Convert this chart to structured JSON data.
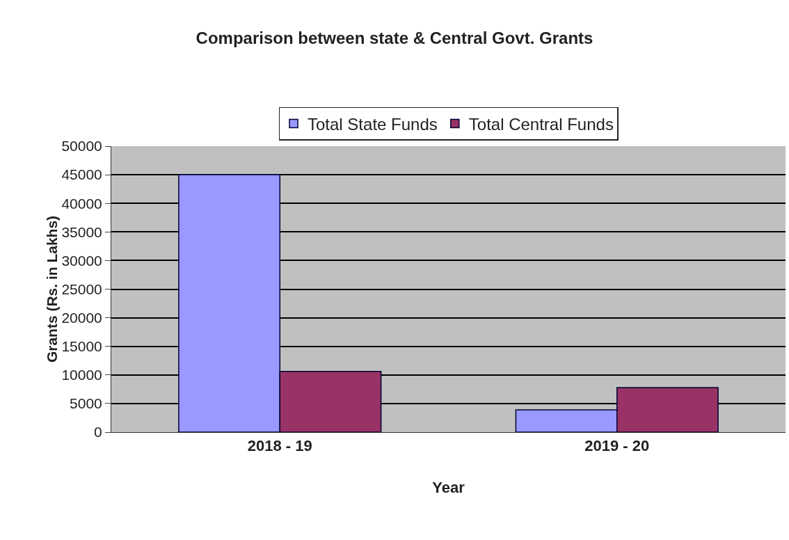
{
  "chart_data": {
    "type": "bar",
    "title": "Comparison between state & Central Govt. Grants",
    "xlabel": "Year",
    "ylabel": "Grants (Rs. in Lakhs)",
    "categories": [
      "2018 - 19",
      "2019 - 20"
    ],
    "series": [
      {
        "name": "Total State Funds",
        "color": "#9999ff",
        "values": [
          45000,
          3900
        ]
      },
      {
        "name": "Total Central Funds",
        "color": "#993366",
        "values": [
          10600,
          7800
        ]
      }
    ],
    "ylim": [
      0,
      50000
    ],
    "yticks": [
      0,
      5000,
      10000,
      15000,
      20000,
      25000,
      30000,
      35000,
      40000,
      45000,
      50000
    ],
    "grid": "y",
    "legend": "top"
  }
}
